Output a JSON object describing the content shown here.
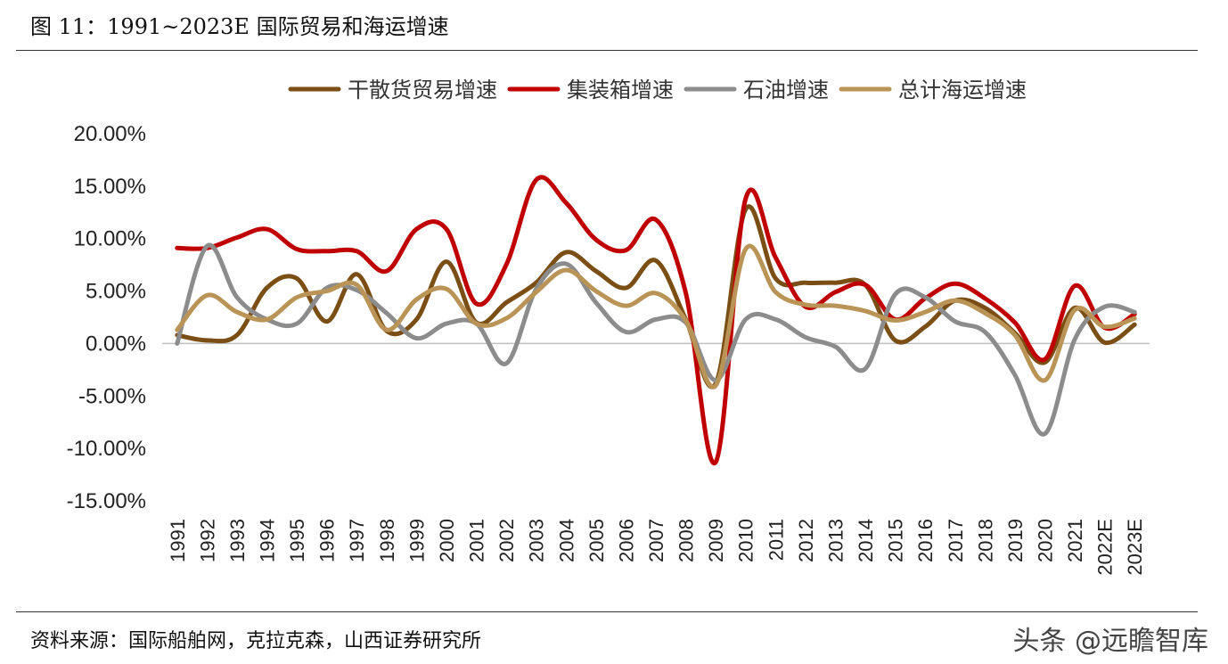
{
  "figure": {
    "title": "图 11：1991~2023E 国际贸易和海运增速",
    "source": "资料来源：国际船舶网，克拉克森，山西证券研究所",
    "watermark": "头条 @远瞻智库"
  },
  "chart_data": {
    "type": "line",
    "title": "",
    "xlabel": "",
    "ylabel": "",
    "legend_position": "top",
    "grid": false,
    "ylim": [
      -15,
      20
    ],
    "y_ticks": [
      "20.00%",
      "15.00%",
      "10.00%",
      "5.00%",
      "0.00%",
      "-5.00%",
      "-10.00%",
      "-15.00%"
    ],
    "categories": [
      "1991",
      "1992",
      "1993",
      "1994",
      "1995",
      "1996",
      "1997",
      "1998",
      "1999",
      "2000",
      "2001",
      "2002",
      "2003",
      "2004",
      "2005",
      "2006",
      "2007",
      "2008",
      "2009",
      "2010",
      "2011",
      "2012",
      "2013",
      "2014",
      "2015",
      "2016",
      "2017",
      "2018",
      "2019",
      "2020",
      "2021",
      "2022E",
      "2023E"
    ],
    "series": [
      {
        "name": "干散货贸易增速",
        "color": "#7a4e14",
        "values": [
          0.8,
          0.3,
          0.8,
          5.3,
          6.2,
          2.1,
          6.6,
          1.2,
          2.3,
          7.8,
          2.0,
          3.9,
          5.8,
          8.7,
          6.9,
          5.3,
          7.9,
          2.3,
          -3.8,
          12.8,
          6.2,
          5.8,
          5.8,
          5.6,
          0.3,
          1.6,
          4.1,
          3.4,
          1.0,
          -1.8,
          3.4,
          0.1,
          1.8
        ]
      },
      {
        "name": "集装箱增速",
        "color": "#c00000",
        "values": [
          9.1,
          9.1,
          10.1,
          10.9,
          9.0,
          8.8,
          8.8,
          6.9,
          10.9,
          10.9,
          3.8,
          7.5,
          15.6,
          13.4,
          9.9,
          8.9,
          11.8,
          4.8,
          -11.3,
          13.8,
          8.2,
          3.5,
          4.9,
          5.6,
          2.3,
          4.3,
          5.7,
          4.3,
          2.0,
          -1.5,
          5.5,
          1.5,
          2.8
        ]
      },
      {
        "name": "石油增速",
        "color": "#8c8c8c",
        "values": [
          0.0,
          9.3,
          4.4,
          2.3,
          1.9,
          5.3,
          5.1,
          2.9,
          0.5,
          1.9,
          1.9,
          -1.9,
          5.2,
          7.6,
          3.9,
          1.1,
          2.3,
          2.0,
          -3.5,
          2.3,
          2.3,
          0.6,
          -0.3,
          -2.4,
          4.7,
          4.4,
          2.1,
          1.1,
          -3.0,
          -8.6,
          0.4,
          3.5,
          3.0
        ]
      },
      {
        "name": "总计海运增速",
        "color": "#b99456",
        "values": [
          1.3,
          4.6,
          3.0,
          2.3,
          4.4,
          5.0,
          5.6,
          1.3,
          4.2,
          5.2,
          1.9,
          2.4,
          4.9,
          7.0,
          5.0,
          3.6,
          4.8,
          2.2,
          -4.0,
          9.0,
          4.9,
          3.7,
          3.6,
          3.1,
          2.2,
          3.0,
          4.1,
          2.9,
          0.8,
          -3.5,
          3.2,
          1.6,
          2.4
        ]
      }
    ]
  }
}
